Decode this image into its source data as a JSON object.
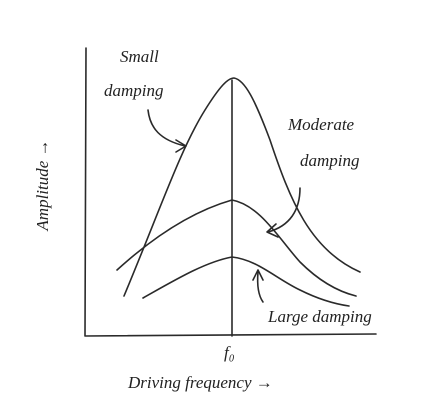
{
  "axes": {
    "y_label": "Amplitude →",
    "x_label": "Driving frequency →",
    "x_marker": "f₀"
  },
  "curves": [
    {
      "label_line1": "Small",
      "label_line2": "damping"
    },
    {
      "label_line1": "Moderate",
      "label_line2": "damping"
    },
    {
      "label": "Large damping"
    }
  ]
}
